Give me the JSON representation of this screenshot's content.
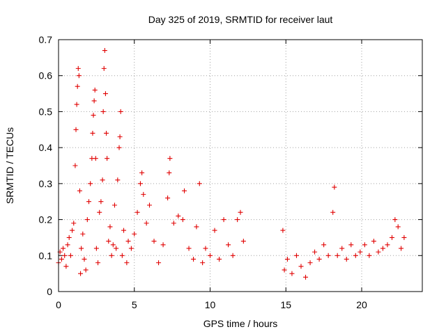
{
  "colors": {
    "series": "#e00000",
    "grid": "#a0a0a0",
    "frame": "#000000"
  },
  "chart_data": {
    "type": "scatter",
    "title": "Day 325 of 2019, SRMTID for receiver laut",
    "xlabel": "GPS time / hours",
    "ylabel": "SRMTID / TECUs",
    "xlim": [
      0,
      24
    ],
    "ylim": [
      0,
      0.7
    ],
    "x_ticks": [
      0,
      5,
      10,
      15,
      20
    ],
    "y_ticks": [
      0,
      0.1,
      0.2,
      0.3,
      0.4,
      0.5,
      0.6,
      0.7
    ],
    "x_tick_labels": [
      "0",
      "5",
      "10",
      "15",
      "20"
    ],
    "y_tick_labels": [
      "0",
      "0.1",
      "0.2",
      "0.3",
      "0.4",
      "0.5",
      "0.6",
      "0.7"
    ],
    "grid": true,
    "marker": "plus",
    "series": [
      {
        "name": "SRMTID",
        "data_gap_hours": [
          12.3,
          14.7
        ],
        "sample_points": [
          [
            0.0,
            0.08
          ],
          [
            0.1,
            0.11
          ],
          [
            0.2,
            0.09
          ],
          [
            0.3,
            0.12
          ],
          [
            0.4,
            0.1
          ],
          [
            0.5,
            0.07
          ],
          [
            0.6,
            0.13
          ],
          [
            0.7,
            0.15
          ],
          [
            0.8,
            0.1
          ],
          [
            0.9,
            0.17
          ],
          [
            1.0,
            0.19
          ],
          [
            1.1,
            0.35
          ],
          [
            1.15,
            0.45
          ],
          [
            1.2,
            0.52
          ],
          [
            1.25,
            0.57
          ],
          [
            1.3,
            0.62
          ],
          [
            1.35,
            0.6
          ],
          [
            1.4,
            0.28
          ],
          [
            1.45,
            0.05
          ],
          [
            1.5,
            0.12
          ],
          [
            1.6,
            0.16
          ],
          [
            1.7,
            0.09
          ],
          [
            1.8,
            0.06
          ],
          [
            1.9,
            0.2
          ],
          [
            2.0,
            0.25
          ],
          [
            2.1,
            0.3
          ],
          [
            2.2,
            0.37
          ],
          [
            2.25,
            0.44
          ],
          [
            2.3,
            0.49
          ],
          [
            2.35,
            0.53
          ],
          [
            2.4,
            0.56
          ],
          [
            2.45,
            0.37
          ],
          [
            2.5,
            0.12
          ],
          [
            2.6,
            0.08
          ],
          [
            2.7,
            0.22
          ],
          [
            2.8,
            0.25
          ],
          [
            2.9,
            0.31
          ],
          [
            2.95,
            0.5
          ],
          [
            3.0,
            0.62
          ],
          [
            3.05,
            0.67
          ],
          [
            3.1,
            0.55
          ],
          [
            3.15,
            0.44
          ],
          [
            3.2,
            0.37
          ],
          [
            3.3,
            0.14
          ],
          [
            3.4,
            0.18
          ],
          [
            3.5,
            0.1
          ],
          [
            3.6,
            0.13
          ],
          [
            3.7,
            0.24
          ],
          [
            3.8,
            0.12
          ],
          [
            3.9,
            0.31
          ],
          [
            4.0,
            0.4
          ],
          [
            4.05,
            0.43
          ],
          [
            4.1,
            0.5
          ],
          [
            4.2,
            0.1
          ],
          [
            4.3,
            0.17
          ],
          [
            4.5,
            0.08
          ],
          [
            4.6,
            0.14
          ],
          [
            4.8,
            0.12
          ],
          [
            5.0,
            0.16
          ],
          [
            5.2,
            0.22
          ],
          [
            5.4,
            0.3
          ],
          [
            5.5,
            0.33
          ],
          [
            5.6,
            0.27
          ],
          [
            5.8,
            0.19
          ],
          [
            6.0,
            0.24
          ],
          [
            6.3,
            0.14
          ],
          [
            6.6,
            0.08
          ],
          [
            6.9,
            0.13
          ],
          [
            7.2,
            0.26
          ],
          [
            7.3,
            0.33
          ],
          [
            7.35,
            0.37
          ],
          [
            7.6,
            0.19
          ],
          [
            7.9,
            0.21
          ],
          [
            8.2,
            0.2
          ],
          [
            8.3,
            0.28
          ],
          [
            8.6,
            0.12
          ],
          [
            8.9,
            0.09
          ],
          [
            9.1,
            0.18
          ],
          [
            9.3,
            0.3
          ],
          [
            9.5,
            0.08
          ],
          [
            9.7,
            0.12
          ],
          [
            10.0,
            0.1
          ],
          [
            10.3,
            0.17
          ],
          [
            10.6,
            0.09
          ],
          [
            10.9,
            0.2
          ],
          [
            11.2,
            0.13
          ],
          [
            11.5,
            0.1
          ],
          [
            11.8,
            0.2
          ],
          [
            12.0,
            0.22
          ],
          [
            12.2,
            0.14
          ],
          [
            14.8,
            0.17
          ],
          [
            14.9,
            0.06
          ],
          [
            15.1,
            0.09
          ],
          [
            15.4,
            0.05
          ],
          [
            15.7,
            0.1
          ],
          [
            16.0,
            0.07
          ],
          [
            16.3,
            0.04
          ],
          [
            16.6,
            0.08
          ],
          [
            16.9,
            0.11
          ],
          [
            17.2,
            0.09
          ],
          [
            17.5,
            0.13
          ],
          [
            17.8,
            0.1
          ],
          [
            18.1,
            0.22
          ],
          [
            18.2,
            0.29
          ],
          [
            18.4,
            0.1
          ],
          [
            18.7,
            0.12
          ],
          [
            19.0,
            0.09
          ],
          [
            19.3,
            0.13
          ],
          [
            19.6,
            0.1
          ],
          [
            19.9,
            0.11
          ],
          [
            20.2,
            0.13
          ],
          [
            20.5,
            0.1
          ],
          [
            20.8,
            0.14
          ],
          [
            21.1,
            0.11
          ],
          [
            21.4,
            0.12
          ],
          [
            21.7,
            0.13
          ],
          [
            22.0,
            0.15
          ],
          [
            22.2,
            0.2
          ],
          [
            22.4,
            0.18
          ],
          [
            22.6,
            0.12
          ],
          [
            22.8,
            0.15
          ]
        ]
      }
    ]
  }
}
